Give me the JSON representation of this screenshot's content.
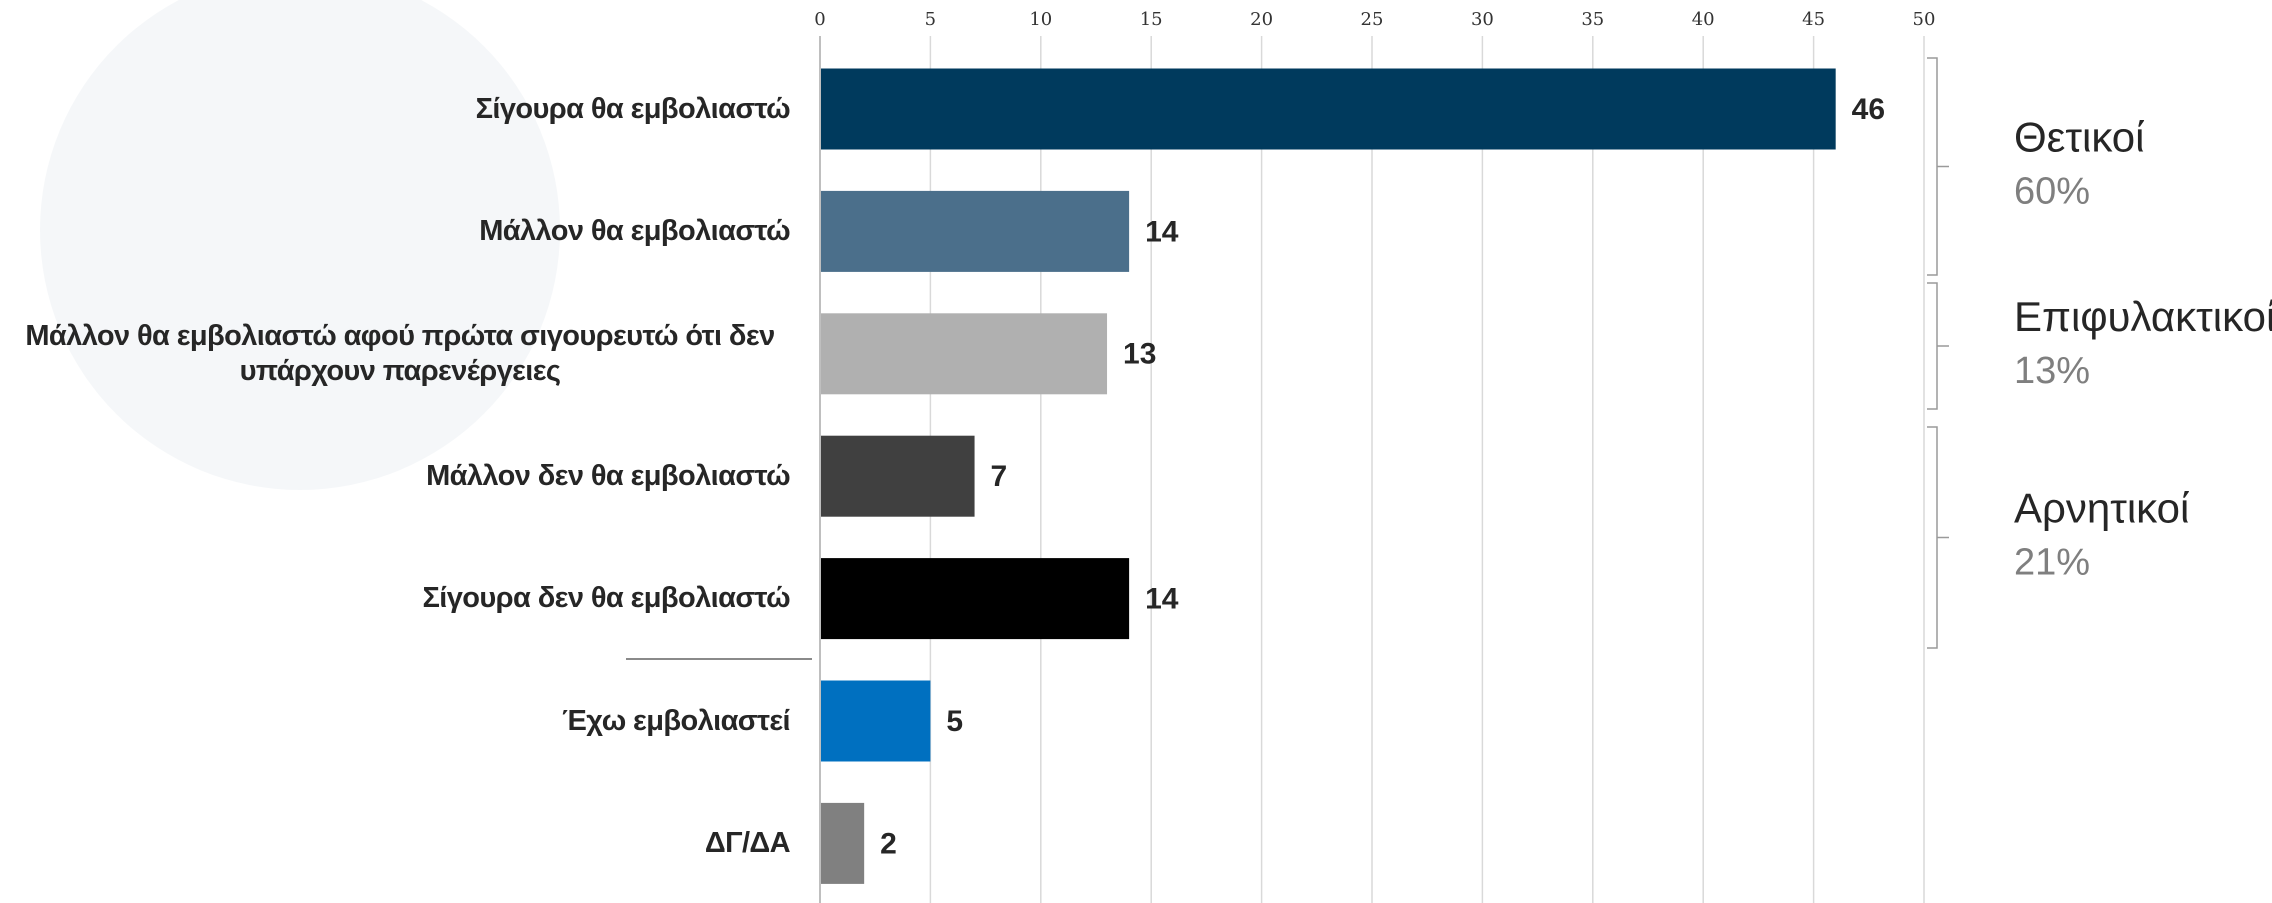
{
  "chart_data": {
    "type": "barh",
    "categories": [
      "Σίγουρα θα εμβολιαστώ",
      "Μάλλον θα εμβολιαστώ",
      "Μάλλον θα εμβολιαστώ αφού πρώτα σιγουρευτώ ότι δεν υπάρχουν παρενέργειες",
      "Μάλλον δεν θα εμβολιαστώ",
      "Σίγουρα δεν θα εμβολιαστώ",
      "Έχω εμβολιαστεί",
      "ΔΓ/ΔΑ"
    ],
    "values": [
      46,
      14,
      13,
      7,
      14,
      5,
      2
    ],
    "colors": [
      "#003a5d",
      "#4b6f8b",
      "#b0b0b0",
      "#404040",
      "#000000",
      "#0070c0",
      "#808080"
    ],
    "xlim": [
      0,
      50
    ],
    "xticks": [
      0,
      5,
      10,
      15,
      20,
      25,
      30,
      35,
      40,
      45,
      50
    ],
    "grid": true,
    "groups": [
      {
        "name": "Θετικοί",
        "value": 60,
        "value_label": "60%"
      },
      {
        "name": "Επιφυλακτικοί",
        "value": 13,
        "value_label": "13%"
      },
      {
        "name": "Αρνητικοί",
        "value": 21,
        "value_label": "21%"
      }
    ]
  }
}
